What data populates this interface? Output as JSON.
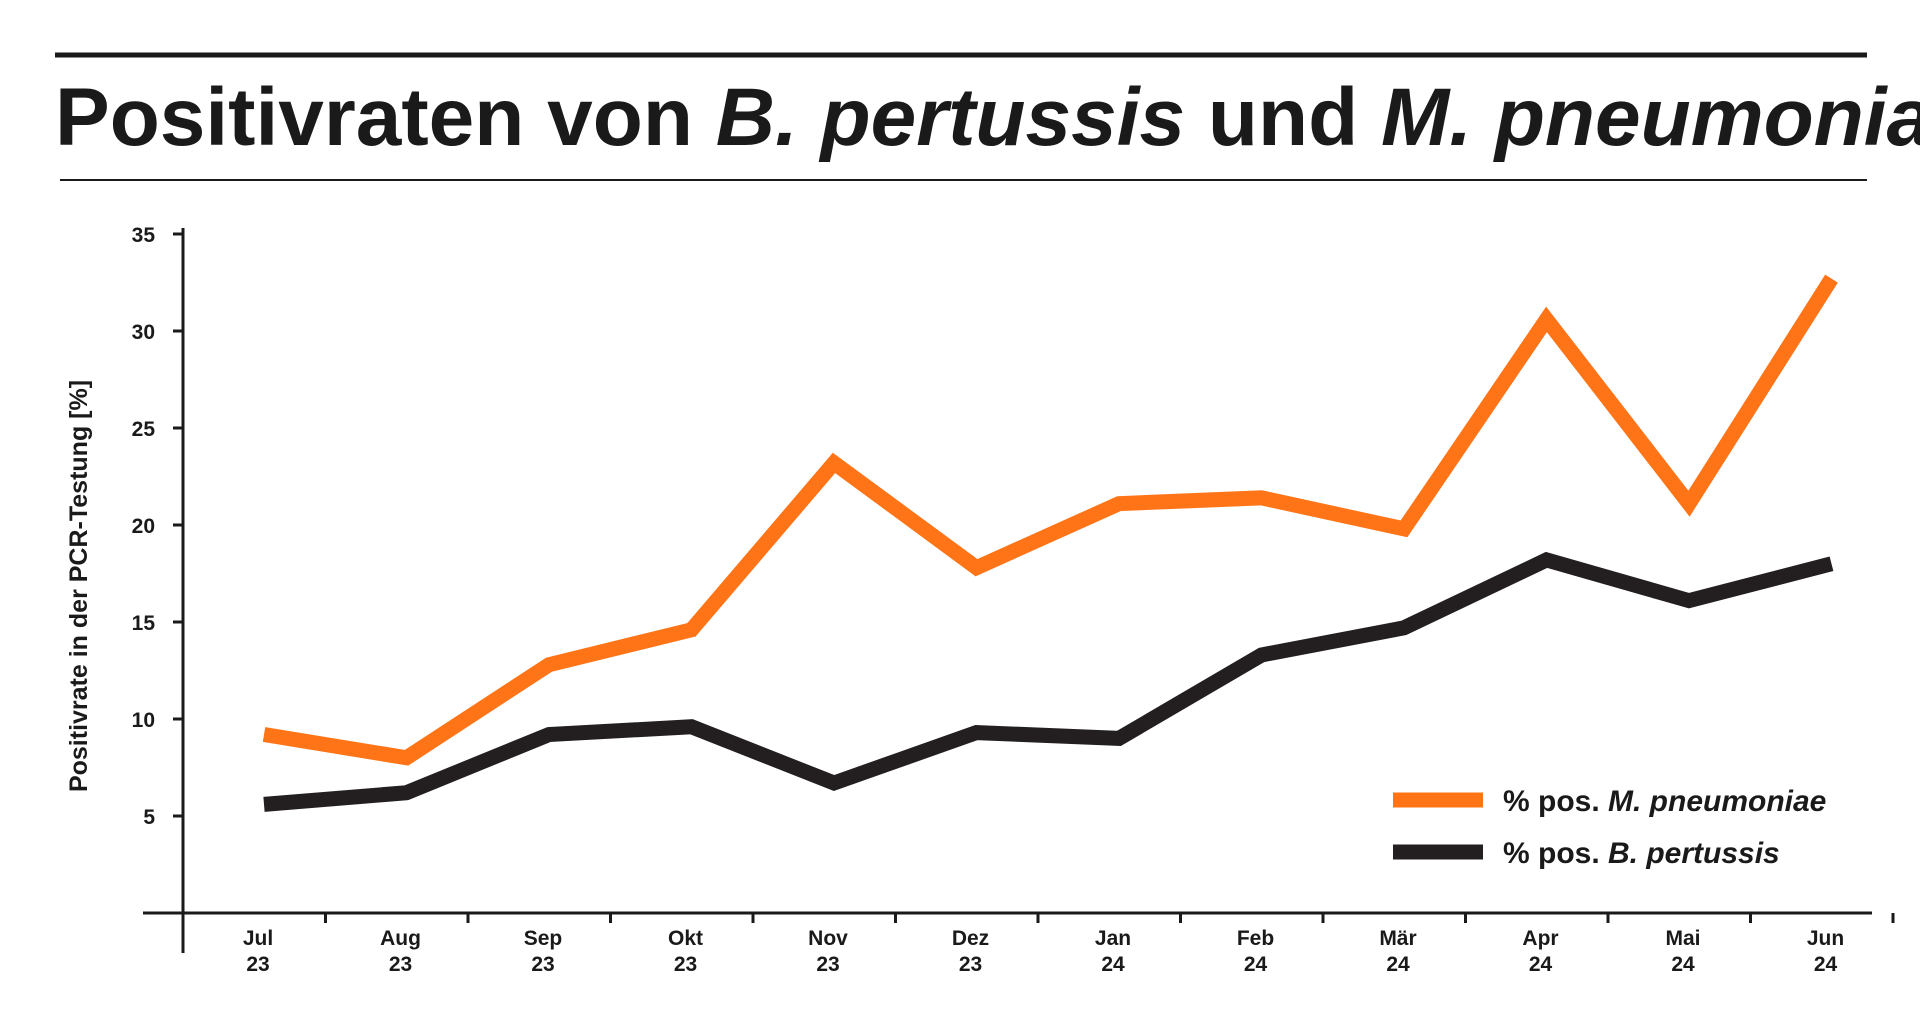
{
  "title": {
    "part1": "Positivraten von ",
    "part2": "B. pertussis",
    "part3": " und ",
    "part4": "M. pneumoniae"
  },
  "colors": {
    "mycoplasma": "#ff7417",
    "pertussis": "#231f20",
    "text": "#1a1a1a"
  },
  "chart_data": {
    "type": "line",
    "title": "Positivraten von B. pertussis und M. pneumoniae",
    "xlabel": "",
    "ylabel": "Positivrate in der PCR-Testung [%]",
    "ylim": [
      0,
      35
    ],
    "yticks": [
      5,
      10,
      15,
      20,
      25,
      30,
      35
    ],
    "grid": false,
    "legend_position": "bottom-right",
    "categories": [
      {
        "month": "Jul",
        "year": "23"
      },
      {
        "month": "Aug",
        "year": "23"
      },
      {
        "month": "Sep",
        "year": "23"
      },
      {
        "month": "Okt",
        "year": "23"
      },
      {
        "month": "Nov",
        "year": "23"
      },
      {
        "month": "Dez",
        "year": "23"
      },
      {
        "month": "Jan",
        "year": "24"
      },
      {
        "month": "Feb",
        "year": "24"
      },
      {
        "month": "Mär",
        "year": "24"
      },
      {
        "month": "Apr",
        "year": "24"
      },
      {
        "month": "Mai",
        "year": "24"
      },
      {
        "month": "Jun",
        "year": "24"
      }
    ],
    "series": [
      {
        "name": "% pos. M. pneumoniae",
        "legend_prefix": "% pos. ",
        "legend_italic": "M. pneumoniae",
        "color": "#ff7417",
        "values": [
          9.2,
          8.0,
          12.8,
          14.6,
          23.2,
          17.8,
          21.1,
          21.4,
          19.8,
          30.6,
          21.1,
          32.7
        ]
      },
      {
        "name": "% pos. B. pertussis",
        "legend_prefix": "% pos. ",
        "legend_italic": "B. pertussis",
        "color": "#231f20",
        "values": [
          5.6,
          6.2,
          9.2,
          9.6,
          6.7,
          9.3,
          9.0,
          13.3,
          14.7,
          18.2,
          16.1,
          18.0
        ]
      }
    ]
  }
}
